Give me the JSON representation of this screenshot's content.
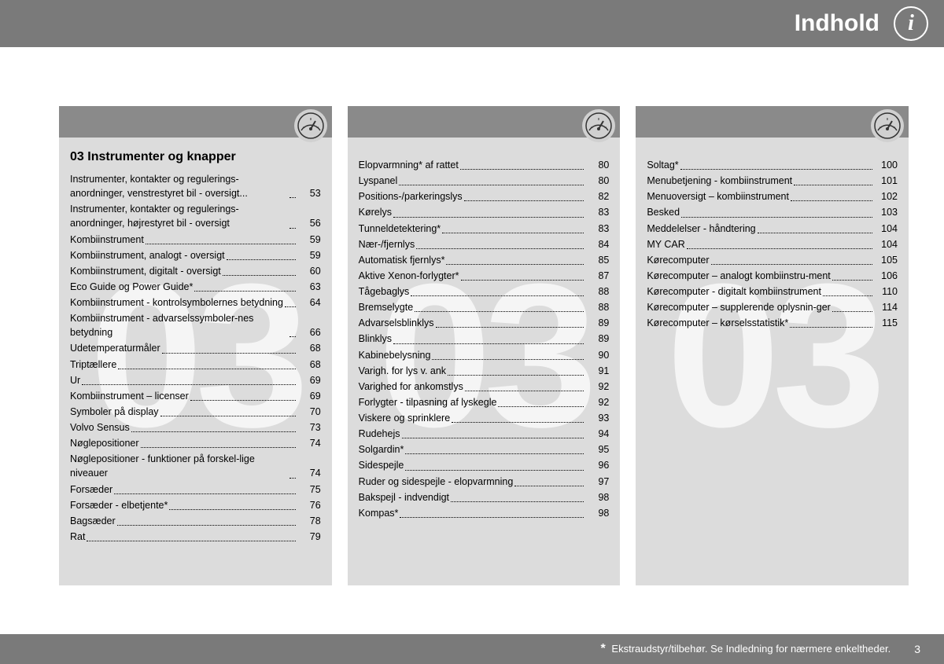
{
  "header": {
    "title": "Indhold"
  },
  "watermark": "03",
  "section_title": "03 Instrumenter og knapper",
  "columns": [
    [
      {
        "label": "Instrumenter, kontakter og regulerings-anordninger, venstrestyret bil - oversigt...",
        "page": "53"
      },
      {
        "label": "Instrumenter, kontakter og regulerings-anordninger, højrestyret bil - oversigt",
        "page": "56"
      },
      {
        "label": "Kombiinstrument",
        "page": "59"
      },
      {
        "label": "Kombiinstrument, analogt - oversigt",
        "page": "59"
      },
      {
        "label": "Kombiinstrument, digitalt - oversigt",
        "page": "60"
      },
      {
        "label": "Eco Guide og Power Guide*",
        "page": "63"
      },
      {
        "label": "Kombiinstrument - kontrolsymbolernes betydning",
        "page": "64"
      },
      {
        "label": "Kombiinstrument - advarselssymboler-nes betydning",
        "page": "66"
      },
      {
        "label": "Udetemperaturmåler",
        "page": "68"
      },
      {
        "label": "Triptællere",
        "page": "68"
      },
      {
        "label": "Ur",
        "page": "69"
      },
      {
        "label": "Kombiinstrument – licenser",
        "page": "69"
      },
      {
        "label": "Symboler på display",
        "page": "70"
      },
      {
        "label": "Volvo Sensus",
        "page": "73"
      },
      {
        "label": "Nøglepositioner",
        "page": "74"
      },
      {
        "label": "Nøglepositioner - funktioner på forskel-lige niveauer",
        "page": "74"
      },
      {
        "label": "Forsæder",
        "page": "75"
      },
      {
        "label": "Forsæder - elbetjente*",
        "page": "76"
      },
      {
        "label": "Bagsæder",
        "page": "78"
      },
      {
        "label": "Rat",
        "page": "79"
      }
    ],
    [
      {
        "label": "Elopvarmning* af rattet",
        "page": "80"
      },
      {
        "label": "Lyspanel",
        "page": "80"
      },
      {
        "label": "Positions-/parkeringslys",
        "page": "82"
      },
      {
        "label": "Kørelys",
        "page": "83"
      },
      {
        "label": "Tunneldetektering*",
        "page": "83"
      },
      {
        "label": "Nær-/fjernlys",
        "page": "84"
      },
      {
        "label": "Automatisk fjernlys*",
        "page": "85"
      },
      {
        "label": "Aktive Xenon-forlygter*",
        "page": "87"
      },
      {
        "label": "Tågebaglys",
        "page": "88"
      },
      {
        "label": "Bremselygte",
        "page": "88"
      },
      {
        "label": "Advarselsblinklys",
        "page": "89"
      },
      {
        "label": "Blinklys",
        "page": "89"
      },
      {
        "label": "Kabinebelysning",
        "page": "90"
      },
      {
        "label": "Varigh. for lys v. ank",
        "page": "91"
      },
      {
        "label": "Varighed for ankomstlys",
        "page": "92"
      },
      {
        "label": "Forlygter - tilpasning af lyskegle",
        "page": "92"
      },
      {
        "label": "Viskere og sprinklere",
        "page": "93"
      },
      {
        "label": "Rudehejs",
        "page": "94"
      },
      {
        "label": "Solgardin*",
        "page": "95"
      },
      {
        "label": "Sidespejle",
        "page": "96"
      },
      {
        "label": "Ruder og sidespejle - elopvarmning",
        "page": "97"
      },
      {
        "label": "Bakspejl - indvendigt",
        "page": "98"
      },
      {
        "label": "Kompas*",
        "page": "98"
      }
    ],
    [
      {
        "label": "Soltag*",
        "page": "100"
      },
      {
        "label": "Menubetjening - kombiinstrument",
        "page": "101"
      },
      {
        "label": "Menuoversigt – kombiinstrument",
        "page": "102"
      },
      {
        "label": "Besked",
        "page": "103"
      },
      {
        "label": "Meddelelser - håndtering",
        "page": "104"
      },
      {
        "label": "MY CAR",
        "page": "104"
      },
      {
        "label": "Kørecomputer",
        "page": "105"
      },
      {
        "label": "Kørecomputer – analogt kombiinstru-ment",
        "page": "106"
      },
      {
        "label": "Kørecomputer - digitalt kombiinstrument",
        "page": "110"
      },
      {
        "label": "Kørecomputer – supplerende oplysnin-ger",
        "page": "114"
      },
      {
        "label": "Kørecomputer – kørselsstatistik*",
        "page": "115"
      }
    ]
  ],
  "footer": {
    "note": "Ekstraudstyr/tilbehør. Se Indledning for nærmere enkeltheder.",
    "page_number": "3"
  },
  "colors": {
    "header_bg": "#7a7a7a",
    "column_bg": "#dcdcdc",
    "column_header_bg": "#8a8a8a",
    "watermark": "#f5f5f5",
    "text": "#000000",
    "header_text": "#ffffff"
  }
}
